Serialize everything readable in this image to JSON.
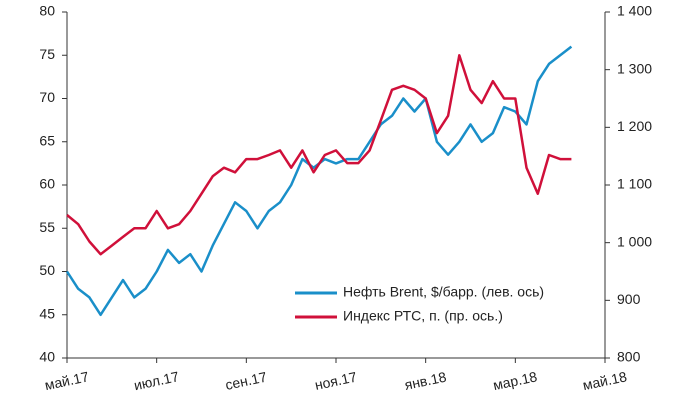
{
  "chart_data": {
    "type": "line",
    "categories": [
      "май.17",
      null,
      null,
      null,
      null,
      null,
      null,
      null,
      "июл.17",
      null,
      null,
      null,
      null,
      null,
      null,
      null,
      "сен.17",
      null,
      null,
      null,
      null,
      null,
      null,
      null,
      "ноя.17",
      null,
      null,
      null,
      null,
      null,
      null,
      null,
      "янв.18",
      null,
      null,
      null,
      null,
      null,
      null,
      null,
      "мар.18",
      null,
      null,
      null,
      null,
      null,
      null,
      null,
      "май.18"
    ],
    "series": [
      {
        "name": "Нефть Brent, $/барр. (лев. ось)",
        "color": "#1a8fc9",
        "values": [
          50,
          48,
          47,
          45,
          47,
          49,
          47,
          48,
          50,
          52.5,
          51,
          52,
          50,
          53,
          55.5,
          58,
          57,
          55,
          57,
          58,
          60,
          63,
          62,
          63,
          62.5,
          63,
          63,
          65,
          67,
          68,
          70,
          68.5,
          70,
          65,
          63.5,
          65,
          67,
          65,
          66,
          69,
          68.5,
          67,
          72,
          74,
          75,
          76,
          null,
          null,
          null
        ]
      },
      {
        "name": "Индекс РТС, п. (пр. ось.)",
        "color": "#d0103a",
        "axis": "y2",
        "values": [
          1048,
          1032,
          1002,
          980,
          995,
          1010,
          1025,
          1025,
          1055,
          1025,
          1032,
          1055,
          1085,
          1115,
          1130,
          1122,
          1145,
          1145,
          1152,
          1160,
          1130,
          1160,
          1122,
          1152,
          1160,
          1138,
          1138,
          1160,
          1212,
          1265,
          1272,
          1265,
          1250,
          1190,
          1220,
          1325,
          1265,
          1242,
          1280,
          1250,
          1250,
          1130,
          1085,
          1152,
          1145,
          1145,
          null,
          null,
          null
        ]
      }
    ],
    "ylim": [
      40,
      80
    ],
    "yticks": [
      40,
      45,
      50,
      55,
      60,
      65,
      70,
      75,
      80
    ],
    "y2lim": [
      800,
      1400
    ],
    "y2ticks": [
      800,
      900,
      {
        "value": 1000,
        "label": "1 000"
      },
      {
        "value": 1100,
        "label": "1 100"
      },
      {
        "value": 1200,
        "label": "1 200"
      },
      {
        "value": 1300,
        "label": "1 300"
      },
      {
        "value": 1400,
        "label": "1 400"
      }
    ],
    "legend": "lower right"
  }
}
